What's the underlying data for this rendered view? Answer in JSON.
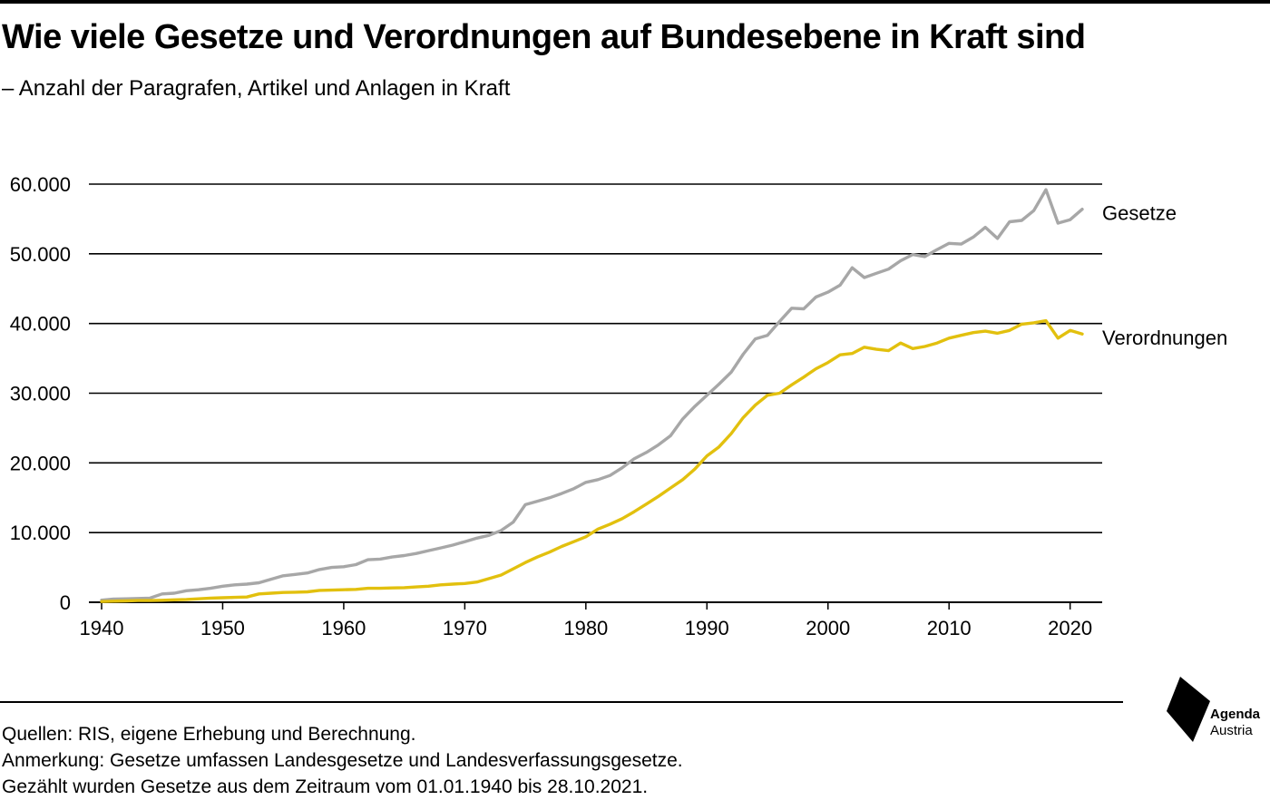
{
  "header": {
    "title": "Wie viele Gesetze und Verordnungen auf Bundesebene in Kraft sind",
    "subtitle": "– Anzahl der Paragrafen, Artikel und Anlagen in Kraft"
  },
  "footer": {
    "lines": [
      "Quellen: RIS, eigene Erhebung und Berechnung.",
      "Anmerkung: Gesetze umfassen Landesgesetze und Landesverfassungsgesetze.",
      "Gezählt wurden Gesetze aus dem Zeitraum vom 01.01.1940 bis 28.10.2021."
    ]
  },
  "logo": {
    "line1": "Agenda",
    "line2": "Austria",
    "icon": "agenda-austria-logo-icon"
  },
  "colors": {
    "gesetze": "#a7a7a7",
    "verordnungen": "#e2c00e",
    "grid": "#000000",
    "text": "#000000"
  },
  "chart_data": {
    "type": "line",
    "title": "Wie viele Gesetze und Verordnungen auf Bundesebene in Kraft sind",
    "subtitle": "– Anzahl der Paragrafen, Artikel und Anlagen in Kraft",
    "xlabel": "",
    "ylabel": "",
    "xlim": [
      1940,
      2021
    ],
    "ylim": [
      0,
      60000
    ],
    "x_ticks": [
      "1940",
      "1950",
      "1960",
      "1970",
      "1980",
      "1990",
      "2000",
      "2010",
      "2020"
    ],
    "y_ticks": [
      "0",
      "10.000",
      "20.000",
      "30.000",
      "40.000",
      "50.000",
      "60.000"
    ],
    "grid": "horizontal",
    "legend": "series labels at right end of lines",
    "x": [
      1940,
      1941,
      1942,
      1943,
      1944,
      1945,
      1946,
      1947,
      1948,
      1949,
      1950,
      1951,
      1952,
      1953,
      1954,
      1955,
      1956,
      1957,
      1958,
      1959,
      1960,
      1961,
      1962,
      1963,
      1964,
      1965,
      1966,
      1967,
      1968,
      1969,
      1970,
      1971,
      1972,
      1973,
      1974,
      1975,
      1976,
      1977,
      1978,
      1979,
      1980,
      1981,
      1982,
      1983,
      1984,
      1985,
      1986,
      1987,
      1988,
      1989,
      1990,
      1991,
      1992,
      1993,
      1994,
      1995,
      1996,
      1997,
      1998,
      1999,
      2000,
      2001,
      2002,
      2003,
      2004,
      2005,
      2006,
      2007,
      2008,
      2009,
      2010,
      2011,
      2012,
      2013,
      2014,
      2015,
      2016,
      2017,
      2018,
      2019,
      2020,
      2021
    ],
    "series": [
      {
        "name": "Gesetze",
        "values": [
          300,
          450,
          500,
          550,
          600,
          1200,
          1300,
          1650,
          1800,
          2000,
          2300,
          2500,
          2600,
          2800,
          3300,
          3800,
          4000,
          4200,
          4700,
          5000,
          5100,
          5400,
          6100,
          6200,
          6500,
          6700,
          7000,
          7400,
          7800,
          8200,
          8700,
          9200,
          9600,
          10300,
          11500,
          14000,
          14500,
          15000,
          15600,
          16300,
          17200,
          17600,
          18200,
          19300,
          20600,
          21500,
          22600,
          23900,
          26300,
          28100,
          29700,
          31300,
          33000,
          35600,
          37800,
          38300,
          40300,
          42200,
          42100,
          43800,
          44500,
          45500,
          48000,
          46600,
          47200,
          47800,
          49000,
          49900,
          49600,
          50600,
          51500,
          51400,
          52400,
          53800,
          52200,
          54600,
          54800,
          56200,
          59200,
          54400,
          54900,
          56400
        ]
      },
      {
        "name": "Verordnungen",
        "values": [
          100,
          150,
          200,
          250,
          250,
          280,
          350,
          400,
          500,
          600,
          650,
          700,
          750,
          1200,
          1300,
          1400,
          1450,
          1500,
          1700,
          1750,
          1800,
          1850,
          2000,
          2000,
          2050,
          2100,
          2200,
          2300,
          2500,
          2600,
          2700,
          2900,
          3400,
          3900,
          4800,
          5700,
          6500,
          7200,
          8000,
          8700,
          9400,
          10500,
          11200,
          12000,
          13000,
          14100,
          15200,
          16400,
          17600,
          19100,
          21000,
          22300,
          24200,
          26500,
          28300,
          29700,
          30000,
          31200,
          32300,
          33500,
          34400,
          35500,
          35700,
          36600,
          36300,
          36100,
          37200,
          36400,
          36700,
          37200,
          37900,
          38300,
          38700,
          38900,
          38600,
          39000,
          39900,
          40100,
          40400,
          37900,
          39000,
          38500
        ]
      }
    ]
  }
}
